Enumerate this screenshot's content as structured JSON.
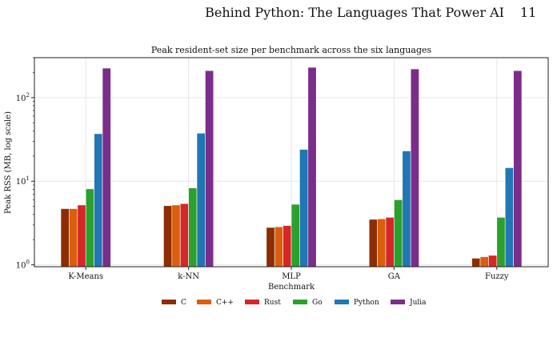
{
  "page_header": {
    "title": "Behind Python: The Languages That Power AI",
    "page_number": "11"
  },
  "chart_data": {
    "type": "bar",
    "title": "Peak resident-set size per benchmark across the six languages",
    "xlabel": "Benchmark",
    "ylabel": "Peak RSS (MB, log scale)",
    "yscale": "log",
    "ylim": [
      0.95,
      300
    ],
    "yticks": [
      {
        "value": 1,
        "base": "10",
        "exp": "0"
      },
      {
        "value": 10,
        "base": "10",
        "exp": "1"
      },
      {
        "value": 100,
        "base": "10",
        "exp": "2"
      }
    ],
    "grid": true,
    "legend": "bottom-center",
    "categories": [
      "K-Means",
      "k-NN",
      "MLP",
      "GA",
      "Fuzzy"
    ],
    "series": [
      {
        "name": "C",
        "color": "#8c2d04",
        "values": [
          4.7,
          5.1,
          2.8,
          3.5,
          1.2
        ]
      },
      {
        "name": "C++",
        "color": "#d95f0e",
        "values": [
          4.7,
          5.2,
          2.85,
          3.55,
          1.25
        ]
      },
      {
        "name": "Rust",
        "color": "#d62728",
        "values": [
          5.2,
          5.4,
          2.95,
          3.7,
          1.3
        ]
      },
      {
        "name": "Go",
        "color": "#2ca02c",
        "values": [
          8.1,
          8.3,
          5.3,
          6.0,
          3.7
        ]
      },
      {
        "name": "Python",
        "color": "#1f77b4",
        "values": [
          37,
          37.5,
          24,
          23,
          14.5
        ]
      },
      {
        "name": "Julia",
        "color": "#7b2d8b",
        "values": [
          225,
          210,
          230,
          220,
          210
        ]
      }
    ]
  }
}
